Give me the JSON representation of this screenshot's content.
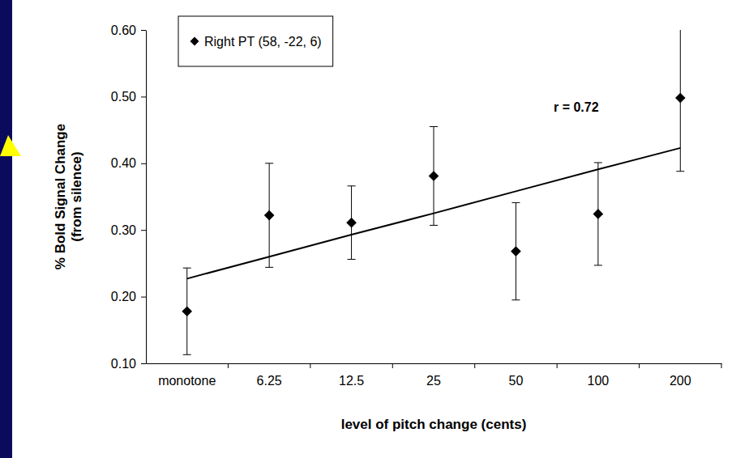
{
  "chart_data": {
    "type": "scatter",
    "x_label": "level of pitch change (cents)",
    "y_label": "% Bold Signal Change (from silence)",
    "categories": [
      "monotone",
      "6.25",
      "12.5",
      "25",
      "50",
      "100",
      "200"
    ],
    "series": [
      {
        "name": "Right PT (58, -22, 6)",
        "color": "#000000",
        "marker": "diamond",
        "values": [
          0.178,
          0.322,
          0.311,
          0.381,
          0.268,
          0.324,
          0.498
        ],
        "errors": [
          0.065,
          0.078,
          0.055,
          0.074,
          0.073,
          0.077,
          0.11
        ]
      },
      {
        "type": "line",
        "color": "#000000",
        "line_style": "solid",
        "values": [
          0.227,
          0.26,
          0.293,
          0.325,
          0.358,
          0.391,
          0.423
        ]
      }
    ],
    "ylim": [
      0.1,
      0.6
    ],
    "yticks": [
      {
        "value": 0.1,
        "label": "0.10"
      },
      {
        "value": 0.2,
        "label": "0.20"
      },
      {
        "value": 0.3,
        "label": "0.30"
      },
      {
        "value": 0.4,
        "label": "0.40"
      },
      {
        "value": 0.5,
        "label": "0.50"
      },
      {
        "value": 0.6,
        "label": "0.60"
      }
    ],
    "annotations": [
      {
        "text": "r = 0.72"
      }
    ],
    "legend": "top-left",
    "grid": false
  }
}
